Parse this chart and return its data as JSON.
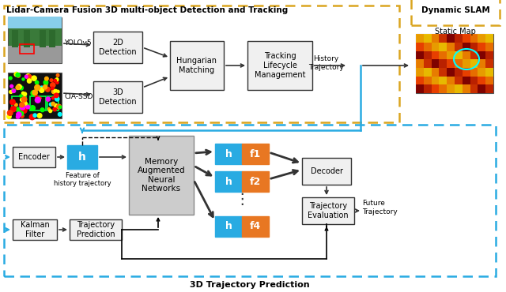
{
  "title_top": "Lidar-Camera Fusion 3D multi-object Detection and Tracking",
  "title_bottom": "3D Trajectory Prediction",
  "title_dynamic_slam": "Dynamic SLAM",
  "bg_color": "#ffffff",
  "yellow_dashed_color": "#DAA520",
  "blue_dashed_color": "#29ABE2",
  "blue_box_color": "#29ABE2",
  "orange_box_color": "#E87722",
  "arrow_color": "#333333",
  "text_color": "#000000"
}
